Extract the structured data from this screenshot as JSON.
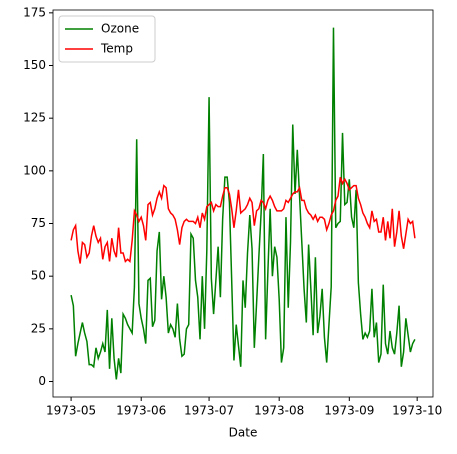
{
  "chart_data": {
    "type": "line",
    "xlabel": "Date",
    "x": [
      "1973-05-01",
      "1973-05-02",
      "1973-05-03",
      "1973-05-04",
      "1973-05-05",
      "1973-05-06",
      "1973-05-07",
      "1973-05-08",
      "1973-05-09",
      "1973-05-10",
      "1973-05-11",
      "1973-05-12",
      "1973-05-13",
      "1973-05-14",
      "1973-05-15",
      "1973-05-16",
      "1973-05-17",
      "1973-05-18",
      "1973-05-19",
      "1973-05-20",
      "1973-05-21",
      "1973-05-22",
      "1973-05-23",
      "1973-05-24",
      "1973-05-25",
      "1973-05-26",
      "1973-05-27",
      "1973-05-28",
      "1973-05-29",
      "1973-05-30",
      "1973-05-31",
      "1973-06-01",
      "1973-06-02",
      "1973-06-03",
      "1973-06-04",
      "1973-06-05",
      "1973-06-06",
      "1973-06-07",
      "1973-06-08",
      "1973-06-09",
      "1973-06-10",
      "1973-06-11",
      "1973-06-12",
      "1973-06-13",
      "1973-06-14",
      "1973-06-15",
      "1973-06-16",
      "1973-06-17",
      "1973-06-18",
      "1973-06-19",
      "1973-06-20",
      "1973-06-21",
      "1973-06-22",
      "1973-06-23",
      "1973-06-24",
      "1973-06-25",
      "1973-06-26",
      "1973-06-27",
      "1973-06-28",
      "1973-06-29",
      "1973-06-30",
      "1973-07-01",
      "1973-07-02",
      "1973-07-03",
      "1973-07-04",
      "1973-07-05",
      "1973-07-06",
      "1973-07-07",
      "1973-07-08",
      "1973-07-09",
      "1973-07-10",
      "1973-07-11",
      "1973-07-12",
      "1973-07-13",
      "1973-07-14",
      "1973-07-15",
      "1973-07-16",
      "1973-07-17",
      "1973-07-18",
      "1973-07-19",
      "1973-07-20",
      "1973-07-21",
      "1973-07-22",
      "1973-07-23",
      "1973-07-24",
      "1973-07-25",
      "1973-07-26",
      "1973-07-27",
      "1973-07-28",
      "1973-07-29",
      "1973-07-30",
      "1973-07-31",
      "1973-08-01",
      "1973-08-02",
      "1973-08-03",
      "1973-08-04",
      "1973-08-05",
      "1973-08-06",
      "1973-08-07",
      "1973-08-08",
      "1973-08-09",
      "1973-08-10",
      "1973-08-11",
      "1973-08-12",
      "1973-08-13",
      "1973-08-14",
      "1973-08-15",
      "1973-08-16",
      "1973-08-17",
      "1973-08-18",
      "1973-08-19",
      "1973-08-20",
      "1973-08-21",
      "1973-08-22",
      "1973-08-23",
      "1973-08-24",
      "1973-08-25",
      "1973-08-26",
      "1973-08-27",
      "1973-08-28",
      "1973-08-29",
      "1973-08-30",
      "1973-08-31",
      "1973-09-01",
      "1973-09-02",
      "1973-09-03",
      "1973-09-04",
      "1973-09-05",
      "1973-09-06",
      "1973-09-07",
      "1973-09-08",
      "1973-09-09",
      "1973-09-10",
      "1973-09-11",
      "1973-09-12",
      "1973-09-13",
      "1973-09-14",
      "1973-09-15",
      "1973-09-16",
      "1973-09-17",
      "1973-09-18",
      "1973-09-19",
      "1973-09-20",
      "1973-09-21",
      "1973-09-22",
      "1973-09-23",
      "1973-09-24",
      "1973-09-25",
      "1973-09-26",
      "1973-09-27",
      "1973-09-28",
      "1973-09-29",
      "1973-09-30"
    ],
    "series": [
      {
        "name": "Ozone",
        "color": "#008000",
        "values": [
          41,
          36,
          12,
          18,
          23,
          28,
          23,
          19,
          8,
          8,
          7,
          16,
          11,
          14,
          18,
          14,
          34,
          6,
          30,
          11,
          1,
          11,
          4,
          32,
          30,
          27,
          25,
          23,
          45,
          115,
          37,
          30,
          25,
          18,
          48,
          49,
          26,
          29,
          62,
          71,
          39,
          50,
          40,
          23,
          27,
          25,
          21,
          37,
          20,
          12,
          13,
          25,
          27,
          70,
          68,
          48,
          40,
          20,
          50,
          25,
          62,
          135,
          49,
          32,
          48,
          64,
          40,
          77,
          97,
          97,
          85,
          48,
          10,
          27,
          17,
          7,
          48,
          35,
          61,
          79,
          63,
          16,
          37,
          59,
          80,
          108,
          20,
          52,
          82,
          50,
          64,
          59,
          39,
          9,
          16,
          78,
          35,
          66,
          122,
          89,
          110,
          88,
          66,
          44,
          28,
          65,
          44,
          22,
          59,
          23,
          31,
          44,
          21,
          9,
          27,
          45,
          168,
          73,
          75,
          76,
          118,
          84,
          85,
          96,
          78,
          73,
          91,
          47,
          32,
          20,
          23,
          21,
          24,
          44,
          21,
          28,
          9,
          13,
          46,
          18,
          13,
          24,
          16,
          13,
          23,
          36,
          7,
          14,
          30,
          22,
          14,
          18,
          20
        ]
      },
      {
        "name": "Temp",
        "color": "#ff0000",
        "values": [
          67,
          72,
          74,
          62,
          56,
          66,
          65,
          59,
          61,
          69,
          74,
          69,
          66,
          68,
          58,
          64,
          66,
          57,
          68,
          62,
          59,
          73,
          61,
          61,
          57,
          58,
          57,
          67,
          81,
          79,
          76,
          78,
          74,
          67,
          84,
          85,
          79,
          82,
          87,
          90,
          87,
          93,
          92,
          82,
          80,
          79,
          77,
          72,
          65,
          73,
          76,
          77,
          76,
          76,
          76,
          75,
          78,
          73,
          80,
          77,
          83,
          84,
          85,
          81,
          84,
          83,
          83,
          88,
          92,
          92,
          89,
          82,
          73,
          81,
          91,
          80,
          81,
          82,
          84,
          87,
          85,
          74,
          81,
          82,
          86,
          85,
          82,
          86,
          88,
          86,
          83,
          81,
          81,
          81,
          82,
          86,
          85,
          87,
          89,
          90,
          90,
          92,
          86,
          86,
          82,
          80,
          79,
          77,
          79,
          76,
          78,
          78,
          77,
          72,
          75,
          79,
          81,
          86,
          88,
          97,
          94,
          96,
          94,
          91,
          92,
          93,
          93,
          87,
          84,
          80,
          78,
          75,
          73,
          81,
          76,
          77,
          71,
          71,
          78,
          67,
          76,
          68,
          82,
          64,
          71,
          81,
          69,
          63,
          70,
          77,
          75,
          76,
          68
        ]
      }
    ],
    "xlim": [
      "1973-04-23",
      "1973-10-08"
    ],
    "xticks": [
      {
        "value": "1973-05-01",
        "label": "1973-05"
      },
      {
        "value": "1973-06-01",
        "label": "1973-06"
      },
      {
        "value": "1973-07-01",
        "label": "1973-07"
      },
      {
        "value": "1973-08-01",
        "label": "1973-08"
      },
      {
        "value": "1973-09-01",
        "label": "1973-09"
      },
      {
        "value": "1973-10-01",
        "label": "1973-10"
      }
    ],
    "ylim": [
      -7.35,
      176.35
    ],
    "yticks": [
      0,
      25,
      50,
      75,
      100,
      125,
      150,
      175
    ],
    "legend": "upper left",
    "grid": false
  }
}
